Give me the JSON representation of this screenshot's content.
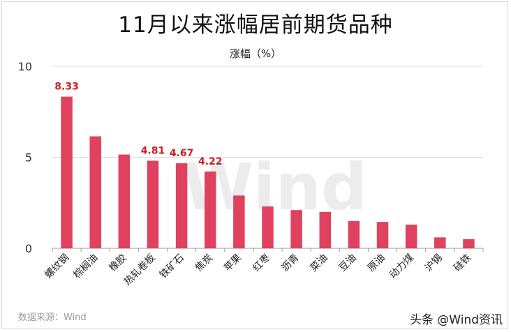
{
  "chart_data": {
    "type": "bar",
    "title": "11月以来涨幅居前期货品种",
    "ylabel": "涨幅（%）",
    "ylim": [
      0,
      10
    ],
    "yticks": [
      0,
      5,
      10
    ],
    "grid": true,
    "categories": [
      "螺纹钢",
      "棕榈油",
      "橡胶",
      "热轧卷板",
      "铁矿石",
      "焦炭",
      "苹果",
      "红枣",
      "沥青",
      "菜油",
      "豆油",
      "原油",
      "动力煤",
      "沪锡",
      "硅铁"
    ],
    "values": [
      8.33,
      6.15,
      5.15,
      4.81,
      4.67,
      4.22,
      2.9,
      2.3,
      2.1,
      2.0,
      1.5,
      1.45,
      1.3,
      0.6,
      0.5
    ],
    "data_labels": [
      "8.33",
      "",
      "",
      "4.81",
      "4.67",
      "4.22",
      "",
      "",
      "",
      "",
      "",
      "",
      "",
      "",
      ""
    ],
    "bar_color": "#e0415e",
    "label_color": "#cc1f1f",
    "watermark": "Wind"
  },
  "footer": {
    "source": "数据来源：Wind",
    "brand": "头条 @Wind资讯"
  }
}
